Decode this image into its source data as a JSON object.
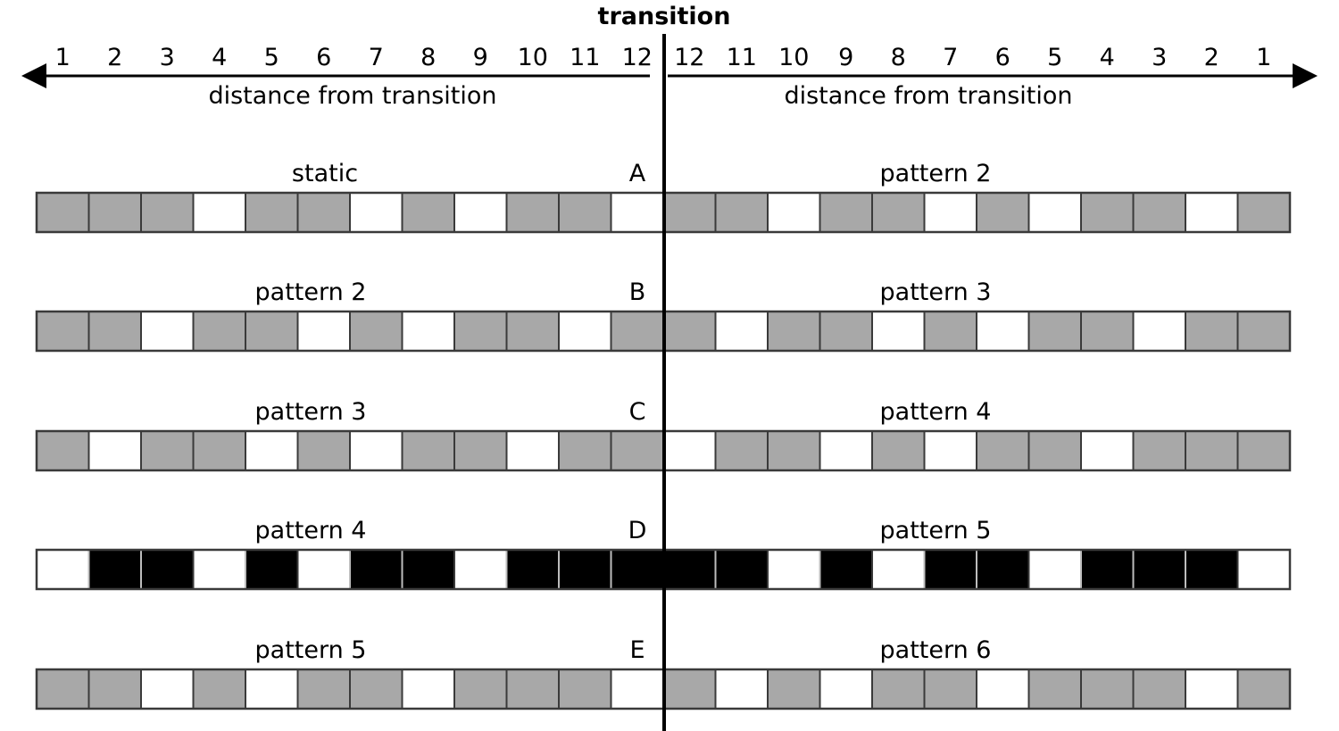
{
  "title": "transition",
  "axis_left": {
    "label": "distance from transition",
    "ticks": [
      "1",
      "2",
      "3",
      "4",
      "5",
      "6",
      "7",
      "8",
      "9",
      "10",
      "11",
      "12"
    ]
  },
  "axis_right": {
    "label": "distance from transition",
    "ticks": [
      "12",
      "11",
      "10",
      "9",
      "8",
      "7",
      "6",
      "5",
      "4",
      "3",
      "2",
      "1"
    ]
  },
  "colors": {
    "gray": "#a8a8a8",
    "white": "#ffffff",
    "black": "#000000",
    "border": "#3a3a3a"
  },
  "rows": [
    {
      "letter": "A",
      "left_label": "static",
      "right_label": "pattern 2",
      "cells": [
        "g",
        "g",
        "g",
        "w",
        "g",
        "g",
        "w",
        "g",
        "w",
        "g",
        "g",
        "w",
        "g",
        "g",
        "w",
        "g",
        "g",
        "w",
        "g",
        "w",
        "g",
        "g",
        "w",
        "g"
      ]
    },
    {
      "letter": "B",
      "left_label": "pattern 2",
      "right_label": "pattern 3",
      "cells": [
        "g",
        "g",
        "w",
        "g",
        "g",
        "w",
        "g",
        "w",
        "g",
        "g",
        "w",
        "g",
        "g",
        "w",
        "g",
        "g",
        "w",
        "g",
        "w",
        "g",
        "g",
        "w",
        "g",
        "g"
      ]
    },
    {
      "letter": "C",
      "left_label": "pattern 3",
      "right_label": "pattern 4",
      "cells": [
        "g",
        "w",
        "g",
        "g",
        "w",
        "g",
        "w",
        "g",
        "g",
        "w",
        "g",
        "g",
        "w",
        "g",
        "g",
        "w",
        "g",
        "w",
        "g",
        "g",
        "w",
        "g",
        "g",
        "g"
      ]
    },
    {
      "letter": "D",
      "left_label": "pattern 4",
      "right_label": "pattern 5",
      "cells": [
        "w",
        "b",
        "b",
        "w",
        "b",
        "w",
        "b",
        "b",
        "w",
        "b",
        "b",
        "b",
        "b",
        "b",
        "w",
        "b",
        "w",
        "b",
        "b",
        "w",
        "b",
        "b",
        "b",
        "w"
      ]
    },
    {
      "letter": "E",
      "left_label": "pattern 5",
      "right_label": "pattern 6",
      "cells": [
        "g",
        "g",
        "w",
        "g",
        "w",
        "g",
        "g",
        "w",
        "g",
        "g",
        "g",
        "w",
        "g",
        "w",
        "g",
        "w",
        "g",
        "g",
        "w",
        "g",
        "g",
        "g",
        "w",
        "g"
      ]
    }
  ]
}
